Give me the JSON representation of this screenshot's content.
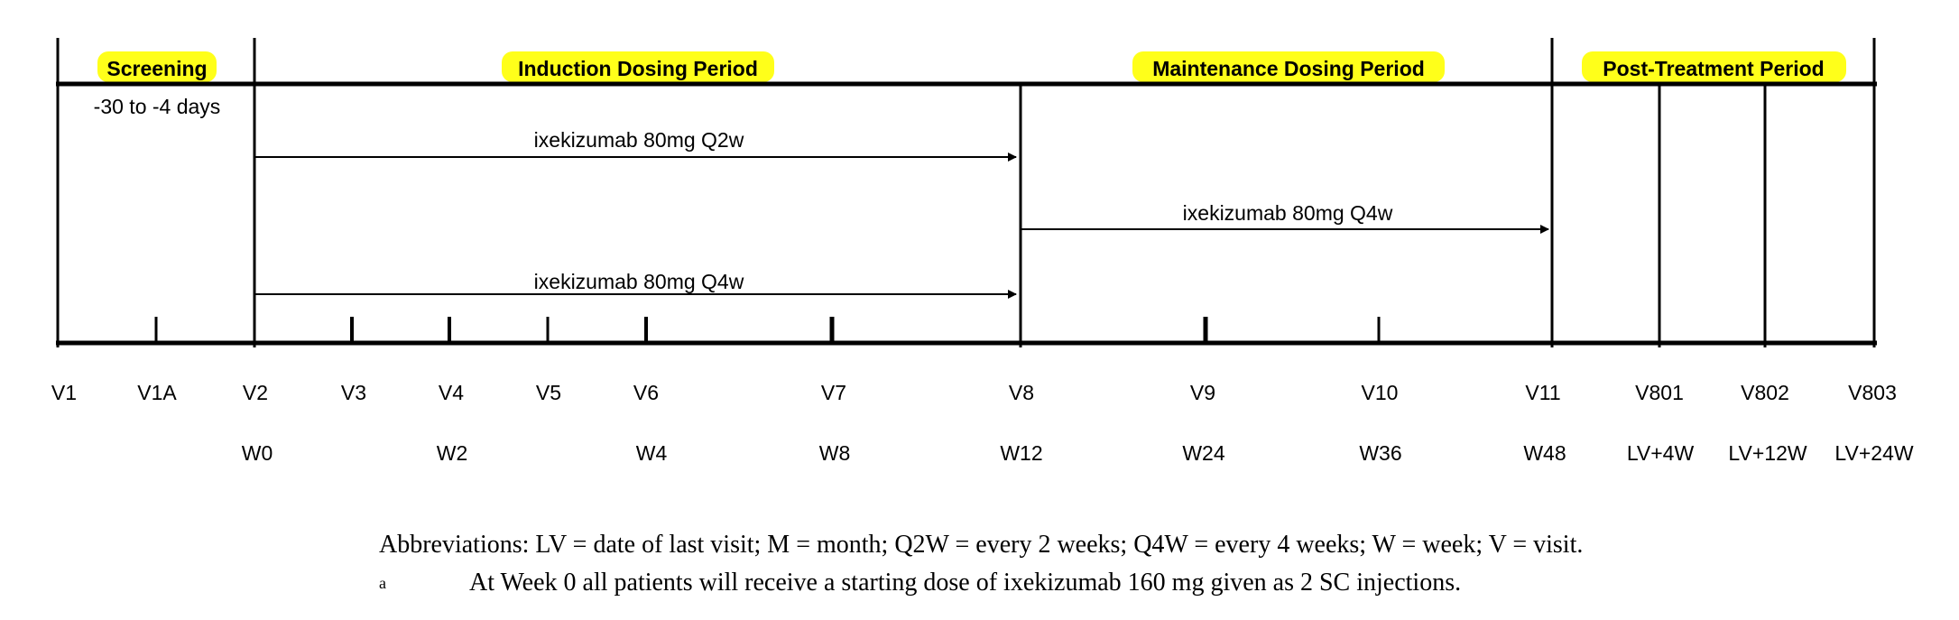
{
  "periods": {
    "screening": "Screening",
    "induction": "Induction Dosing Period",
    "maintenance": "Maintenance Dosing Period",
    "post_treatment": "Post-Treatment Period"
  },
  "screening_window": "-30 to -4 days",
  "dosing_arms": {
    "induction_q2w": "ixekizumab 80mg Q2w",
    "induction_q4w": "ixekizumab 80mg Q4w",
    "maintenance_q4w": "ixekizumab 80mg Q4w"
  },
  "visits": [
    "V1",
    "V1A",
    "V2",
    "V3",
    "V4",
    "V5",
    "V6",
    "V7",
    "V8",
    "V9",
    "V10",
    "V11",
    "V801",
    "V802",
    "V803"
  ],
  "weeks": [
    "W0",
    "W2",
    "W4",
    "W8",
    "W12",
    "W24",
    "W36",
    "W48",
    "LV+4W",
    "LV+12W",
    "LV+24W"
  ],
  "footnotes": {
    "abbreviations": "Abbreviations:  LV = date of last visit; M = month; Q2W = every 2 weeks; Q4W = every 4 weeks; W = week; V = visit.",
    "marker": "a",
    "note_a": "At Week 0 all patients will receive a starting dose of ixekizumab 160 mg given as 2 SC injections."
  },
  "colors": {
    "highlight": "#ffff1a",
    "line": "#000000"
  }
}
